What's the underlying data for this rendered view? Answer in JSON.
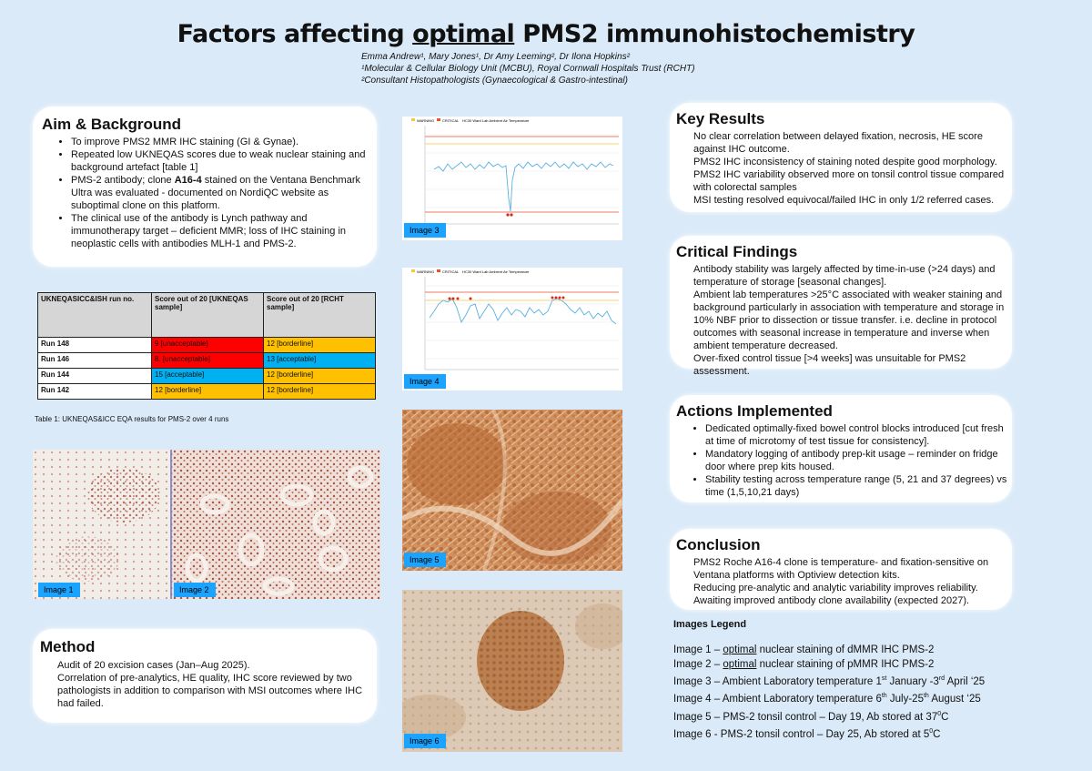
{
  "poster": {
    "title_pre": "Factors affecting ",
    "title_ul": "optimal",
    "title_post": " PMS2 immunohistochemistry",
    "authors": [
      "Emma Andrew¹, Mary Jones¹, Dr Amy Leeming², Dr Ilona Hopkins²",
      "¹Molecular & Cellular Biology Unit (MCBU), Royal Cornwall Hospitals Trust (RCHT)",
      "²Consultant Histopathologists (Gynaecological & Gastro-intestinal)"
    ]
  },
  "aim": {
    "heading": "Aim & Background",
    "items": [
      "To improve PMS2 MMR IHC staining (GI & Gynae).",
      "Repeated low UKNEQAS scores due to weak nuclear staining and background artefact [table 1]",
      "was evaluated - documented on NordiQC website as suboptimal clone on this platform.",
      "The clinical use of the antibody is Lynch pathway and immunotherapy target – deficient MMR; loss of IHC staining in neoplastic cells with antibodies MLH-1 and PMS-2."
    ],
    "item3_pre": "PMS-2 antibody; clone ",
    "item3_bold": "A16-4",
    "item3_post": " stained on the Ventana Benchmark Ultra"
  },
  "table": {
    "headers": [
      "UKNEQASICC&ISH run no.",
      "Score out of 20 [UKNEQAS sample]",
      "Score out of 20 [RCHT sample]"
    ],
    "rows": [
      {
        "run": "Run 148",
        "ukneqas": "9 [unacceptable]",
        "rcht": "12 [borderline]"
      },
      {
        "run": "Run 146",
        "ukneqas": "8. [unacceptable]",
        "rcht": "13 [acceptable]"
      },
      {
        "run": "Run 144",
        "ukneqas": "15 [acceptable]",
        "rcht": "12 [borderline]"
      },
      {
        "run": "Run 142",
        "ukneqas": "12 [borderline]",
        "rcht": "12 [borderline]"
      }
    ],
    "caption": "Table 1: UKNEQAS&ICC EQA results for PMS-2 over 4 runs",
    "colors": {
      "unacceptable": "#ff0000",
      "borderline": "#ffc000",
      "acceptable": "#00b0f0"
    }
  },
  "images": {
    "image1": "Image 1",
    "image2": "Image 2",
    "image3": "Image 3",
    "image4": "Image 4",
    "image5": "Image 5",
    "image6": "Image 6",
    "chart_legend_1": "WARNING",
    "chart_legend_2": "CRITICAL",
    "chart_legend_3": "HC30 Ward Lab Ambient Air Temperature"
  },
  "method": {
    "heading": "Method",
    "lines": [
      "Audit of 20 excision cases (Jan–Aug 2025).",
      "Correlation of pre-analytics, HE quality, IHC score reviewed by two pathologists in addition to comparison with MSI outcomes where IHC had failed."
    ]
  },
  "key_results": {
    "heading": "Key Results",
    "lines": [
      "No clear correlation between delayed fixation, necrosis, HE score against IHC outcome.",
      "PMS2 IHC inconsistency of staining noted despite good morphology.",
      "PMS2 IHC variability observed more on tonsil control tissue compared with colorectal samples",
      "MSI testing resolved equivocal/failed IHC in only 1/2 referred cases."
    ]
  },
  "critical": {
    "heading": "Critical Findings",
    "lines": [
      "Antibody stability was largely affected by time-in-use (>24 days) and temperature of storage [seasonal changes].",
      "Ambient lab temperatures >25°C associated with weaker staining and background particularly in association with temperature and storage in 10% NBF prior to dissection or tissue transfer. i.e. decline in protocol outcomes with seasonal increase in temperature and inverse when ambient temperature decreased.",
      "Over-fixed control tissue [>4 weeks] was unsuitable for PMS2 assessment."
    ]
  },
  "actions": {
    "heading": "Actions Implemented",
    "items": [
      "Dedicated optimally-fixed bowel control blocks introduced [cut fresh at time of microtomy of test tissue for consistency].",
      "Mandatory logging of antibody prep-kit usage – reminder on fridge door where prep kits housed.",
      "Stability testing across temperature range (5, 21 and 37 degrees) vs time (1,5,10,21 days)"
    ]
  },
  "conclusion": {
    "heading": "Conclusion",
    "lines": [
      "PMS2 Roche A16-4 clone is temperature- and fixation-sensitive on Ventana platforms with Optiview detection kits.",
      "Reducing pre-analytic and analytic variability improves reliability.",
      "Awaiting improved antibody clone availability (expected 2027)."
    ]
  },
  "legend": {
    "title": "Images Legend",
    "l1_pre": "Image 1 – ",
    "l1_ul": "optimal",
    "l1_post": " nuclear staining of dMMR IHC PMS-2",
    "l2_pre": "Image 2 – ",
    "l2_ul": "optimal",
    "l2_post": " nuclear staining of pMMR IHC PMS-2",
    "l3_a": "Image 3 – Ambient Laboratory temperature 1",
    "l3_s1": "st",
    "l3_b": " January -3",
    "l3_s2": "rd",
    "l3_c": " April ‘25",
    "l4_a": "Image 4 – Ambient Laboratory temperature 6",
    "l4_s1": "th",
    "l4_b": " July-25",
    "l4_s2": "th",
    "l4_c": " August ‘25",
    "l5_a": "Image 5 – PMS-2 tonsil control – Day 19, Ab stored at 37",
    "l5_s": "0",
    "l5_b": "C",
    "l6_a": "Image 6 - PMS-2 tonsil control – Day 25, Ab stored at 5",
    "l6_s": "0",
    "l6_b": "C"
  }
}
